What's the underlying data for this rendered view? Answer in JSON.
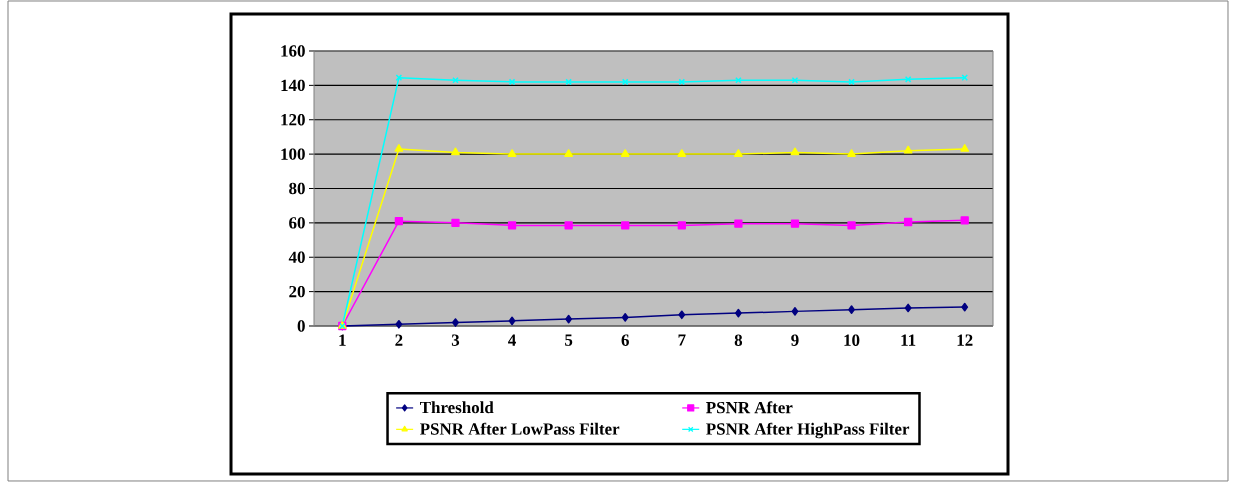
{
  "chart_data": {
    "type": "line",
    "categories": [
      "1",
      "2",
      "3",
      "4",
      "5",
      "6",
      "7",
      "8",
      "9",
      "10",
      "11",
      "12"
    ],
    "series": [
      {
        "name": "Threshold",
        "color": "#000080",
        "marker": "diamond",
        "values": [
          0,
          1,
          2,
          3,
          4,
          5,
          6.5,
          7.5,
          8.5,
          9.5,
          10.5,
          11
        ]
      },
      {
        "name": "PSNR After",
        "color": "#ff00ff",
        "marker": "square",
        "values": [
          0,
          61,
          60,
          58.5,
          58.5,
          58.5,
          58.5,
          59.5,
          59.5,
          58.5,
          60.5,
          61.5
        ]
      },
      {
        "name": "PSNR After LowPass Filter",
        "color": "#ffff00",
        "marker": "triangle",
        "values": [
          0,
          103,
          101,
          100,
          100,
          100,
          100,
          100,
          101,
          100,
          102,
          103
        ]
      },
      {
        "name": "PSNR After HighPass Filter",
        "color": "#00ffff",
        "marker": "cross",
        "values": [
          0,
          144.5,
          143,
          142,
          142,
          142,
          142,
          143,
          143,
          142,
          143.5,
          144.5
        ]
      }
    ],
    "ylim": [
      0,
      160
    ],
    "yticks": [
      0,
      20,
      40,
      60,
      80,
      100,
      120,
      140,
      160
    ],
    "grid": "y",
    "legend": "bottom"
  }
}
